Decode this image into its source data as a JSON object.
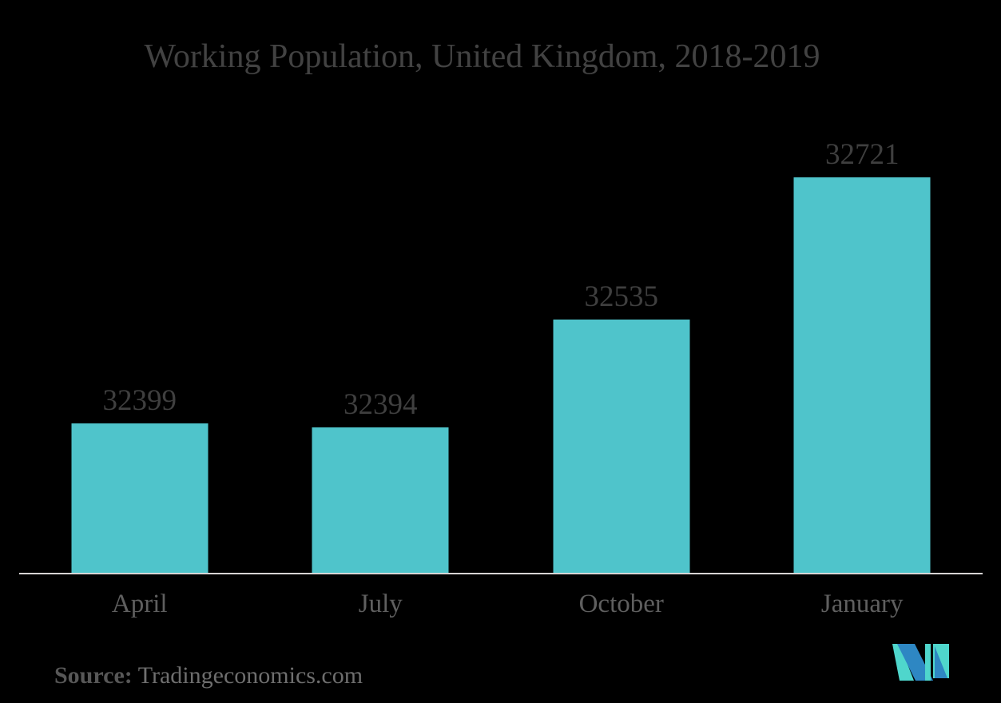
{
  "chart_data": {
    "type": "bar",
    "title": "Working Population, United Kingdom, 2018-2019",
    "categories": [
      "April",
      "July",
      "October",
      "January"
    ],
    "values": [
      32399,
      32394,
      32535,
      32721
    ],
    "xlabel": "",
    "ylabel": "",
    "ylim": [
      32202,
      32760
    ],
    "grid": false,
    "legend": false,
    "bar_color": "#4FC4CB",
    "value_label_color": "#3F3F3F",
    "category_label_color": "#5F5F5F",
    "title_color": "#424242",
    "axis_line_color": "#D7D5D5",
    "background_color": "#000000"
  },
  "source": {
    "label": "Source:",
    "value": "Tradingeconomics.com"
  },
  "logo": {
    "name": "mordor-intelligence-logo",
    "blue": "#2E87C3",
    "teal": "#4FD6CC"
  }
}
